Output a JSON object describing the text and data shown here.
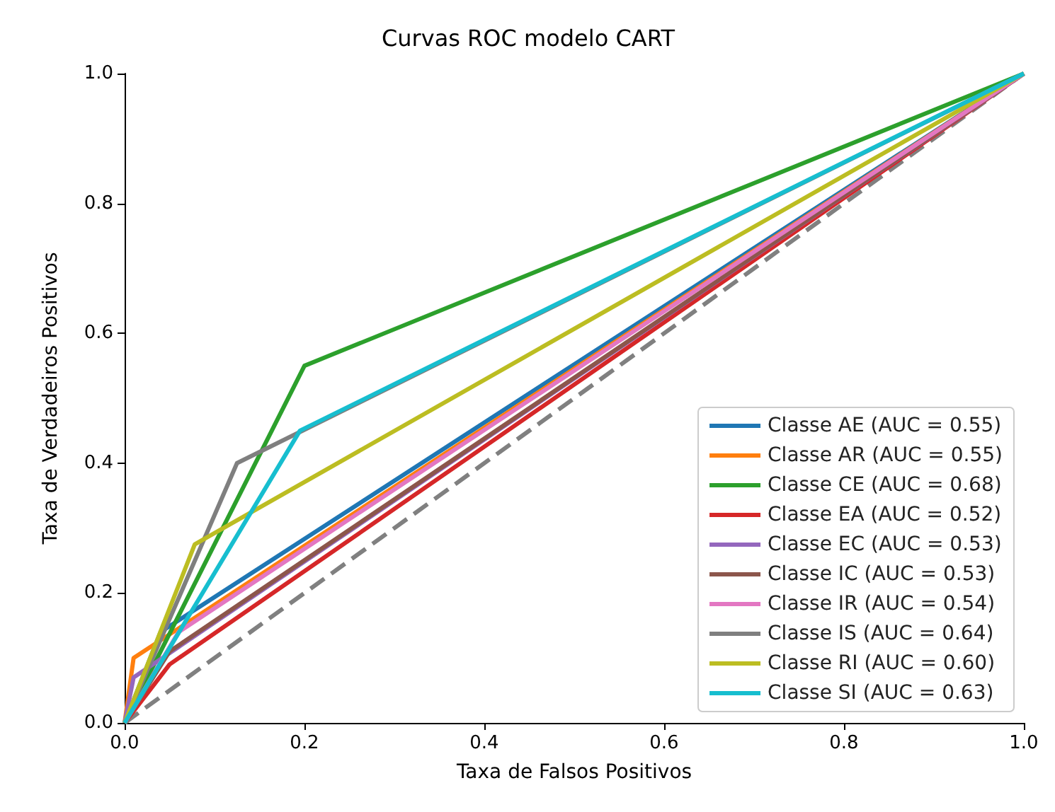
{
  "chart_data": {
    "type": "line",
    "title": "Curvas ROC modelo CART",
    "xlabel": "Taxa de Falsos Positivos",
    "ylabel": "Taxa de Verdadeiros Positivos",
    "xlim": [
      0,
      1
    ],
    "ylim": [
      0,
      1
    ],
    "xticks": [
      {
        "value": 0,
        "label": "0.0"
      },
      0.2,
      0.4,
      0.6,
      0.8,
      {
        "value": 1,
        "label": "1.0"
      }
    ],
    "yticks": [
      {
        "value": 0,
        "label": "0.0"
      },
      0.2,
      0.4,
      0.6,
      0.8,
      {
        "value": 1,
        "label": "1.0"
      }
    ],
    "grid": false,
    "legend": "bottom right",
    "marker": "none",
    "series": [
      {
        "name": "Classe AE (AUC = 0.55)",
        "color": "#1f77b4",
        "x": [
          0,
          0.04,
          1
        ],
        "values": [
          0,
          0.14,
          1
        ]
      },
      {
        "name": "Classe AR (AUC = 0.55)",
        "color": "#ff7f0e",
        "x": [
          0,
          0.01,
          1
        ],
        "values": [
          0,
          0.1,
          1
        ]
      },
      {
        "name": "Classe CE (AUC = 0.68)",
        "color": "#2ca02c",
        "x": [
          0,
          0.2,
          1
        ],
        "values": [
          0,
          0.55,
          1
        ]
      },
      {
        "name": "Classe EA (AUC = 0.52)",
        "color": "#d62728",
        "x": [
          0,
          0.05,
          1
        ],
        "values": [
          0,
          0.09,
          1
        ]
      },
      {
        "name": "Classe EC (AUC = 0.53)",
        "color": "#9467bd",
        "x": [
          0,
          0.01,
          1
        ],
        "values": [
          0,
          0.07,
          1
        ]
      },
      {
        "name": "Classe IC (AUC = 0.53)",
        "color": "#8c564b",
        "x": [
          0,
          0.05,
          1
        ],
        "values": [
          0,
          0.11,
          1
        ]
      },
      {
        "name": "Classe IR (AUC = 0.54)",
        "color": "#e377c2",
        "x": [
          0,
          0.06,
          1
        ],
        "values": [
          0,
          0.14,
          1
        ]
      },
      {
        "name": "Classe IS (AUC = 0.64)",
        "color": "#7f7f7f",
        "x": [
          0,
          0.125,
          1
        ],
        "values": [
          0,
          0.4,
          1
        ]
      },
      {
        "name": "Classe RI (AUC = 0.60)",
        "color": "#bcbd22",
        "x": [
          0,
          0.078,
          1
        ],
        "values": [
          0,
          0.275,
          1
        ]
      },
      {
        "name": "Classe SI (AUC = 0.63)",
        "color": "#17becf",
        "x": [
          0,
          0.195,
          1
        ],
        "values": [
          0,
          0.45,
          1
        ]
      },
      {
        "color": "#808080",
        "line_style": "dashed",
        "x": [
          0,
          1
        ],
        "values": [
          0,
          1
        ]
      }
    ]
  }
}
